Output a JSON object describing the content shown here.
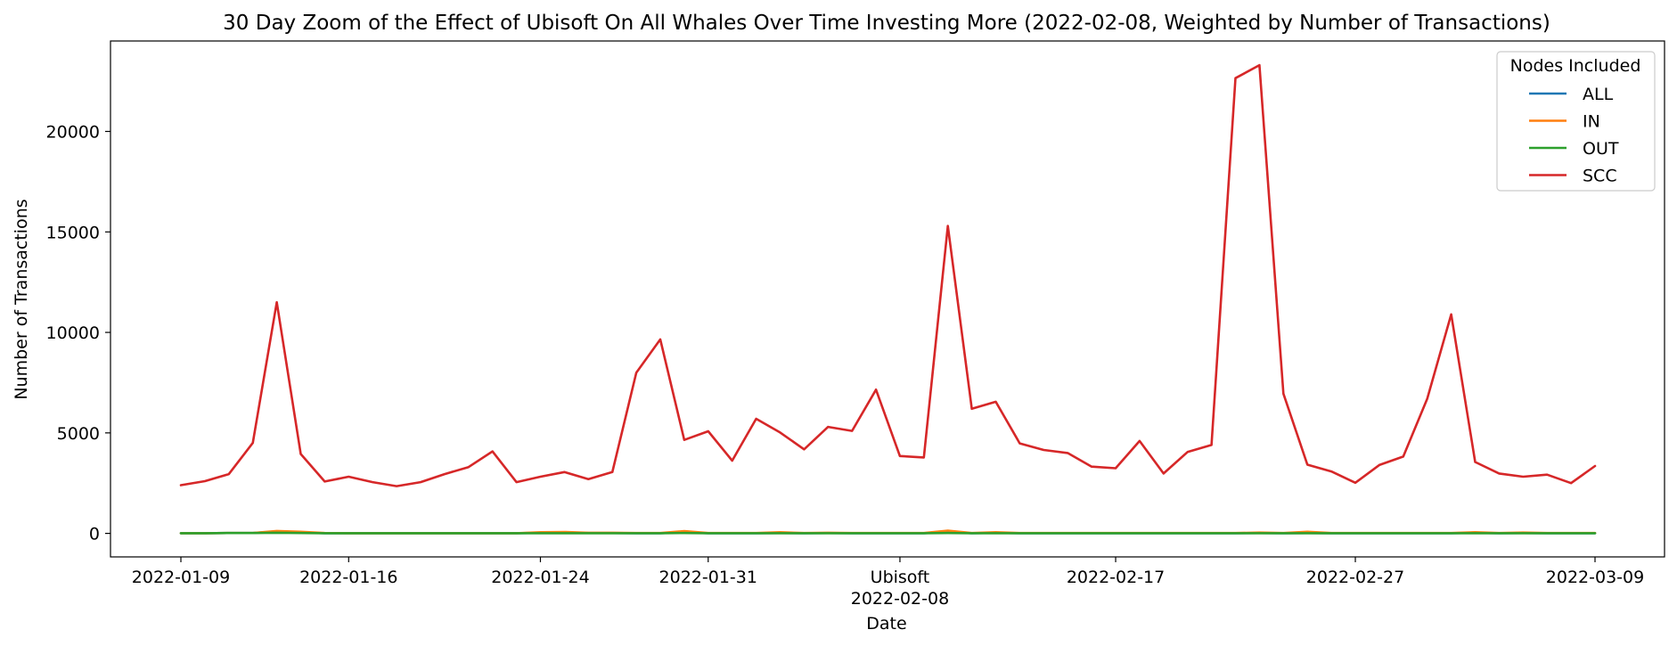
{
  "chart_data": {
    "type": "line",
    "title": "30 Day Zoom of the Effect of Ubisoft On All Whales Over Time Investing More (2022-02-08, Weighted by Number of Transactions)",
    "xlabel": "Date",
    "ylabel": "Number of Transactions",
    "x_ticks": [
      "2022-01-09",
      "2022-01-16",
      "2022-01-24",
      "2022-01-31",
      "2022-02-08",
      "2022-02-17",
      "2022-02-27",
      "2022-03-09"
    ],
    "x_tick_index": [
      0,
      7,
      15,
      22,
      30,
      39,
      49,
      59
    ],
    "event_annotation": {
      "label": "Ubisoft",
      "date": "2022-02-08"
    },
    "y_ticks": [
      0,
      5000,
      10000,
      15000,
      20000
    ],
    "ylim": [
      -1170,
      24500
    ],
    "grid": false,
    "legend": {
      "title": "Nodes Included",
      "placement": "top-right"
    },
    "series": [
      {
        "name": "ALL",
        "color": "#1f77b4",
        "values": [
          10,
          10,
          20,
          20,
          90,
          50,
          10,
          10,
          10,
          10,
          10,
          10,
          10,
          10,
          10,
          30,
          40,
          20,
          20,
          10,
          10,
          60,
          10,
          10,
          10,
          20,
          10,
          20,
          10,
          10,
          10,
          10,
          80,
          10,
          30,
          10,
          10,
          10,
          10,
          10,
          10,
          10,
          10,
          10,
          10,
          20,
          10,
          20,
          10,
          10,
          10,
          10,
          10,
          10,
          30,
          10,
          20,
          10,
          10,
          10
        ]
      },
      {
        "name": "IN",
        "color": "#ff7f0e",
        "values": [
          10,
          10,
          20,
          20,
          120,
          80,
          20,
          10,
          10,
          10,
          10,
          10,
          10,
          10,
          10,
          60,
          70,
          30,
          30,
          20,
          20,
          110,
          20,
          20,
          20,
          60,
          20,
          30,
          20,
          20,
          20,
          20,
          140,
          20,
          60,
          20,
          20,
          20,
          20,
          20,
          20,
          20,
          20,
          20,
          20,
          40,
          20,
          80,
          20,
          20,
          20,
          20,
          20,
          20,
          60,
          20,
          40,
          20,
          20,
          20
        ]
      },
      {
        "name": "OUT",
        "color": "#2ca02c",
        "values": [
          10,
          10,
          20,
          20,
          30,
          20,
          10,
          10,
          10,
          10,
          10,
          10,
          10,
          10,
          10,
          10,
          10,
          10,
          10,
          10,
          10,
          20,
          10,
          10,
          10,
          10,
          10,
          10,
          10,
          10,
          10,
          10,
          20,
          10,
          10,
          10,
          10,
          10,
          10,
          10,
          10,
          10,
          10,
          10,
          10,
          10,
          10,
          10,
          10,
          10,
          10,
          10,
          10,
          10,
          10,
          10,
          10,
          10,
          10,
          10
        ]
      },
      {
        "name": "SCC",
        "color": "#d62728",
        "values": [
          2400,
          2600,
          2950,
          4500,
          11500,
          3950,
          2580,
          2820,
          2550,
          2350,
          2550,
          2950,
          3300,
          4080,
          2550,
          2820,
          3050,
          2700,
          3050,
          8000,
          9650,
          4650,
          5080,
          3620,
          5700,
          5020,
          4180,
          5300,
          5100,
          7150,
          3850,
          3780,
          15300,
          6200,
          6550,
          4480,
          4150,
          4000,
          3320,
          3240,
          4600,
          2980,
          4050,
          4400,
          22650,
          23300,
          6950,
          3420,
          3080,
          2520,
          3400,
          3820,
          6700,
          10900,
          3550,
          2980,
          2820,
          2920,
          2500,
          3350
        ]
      }
    ]
  }
}
